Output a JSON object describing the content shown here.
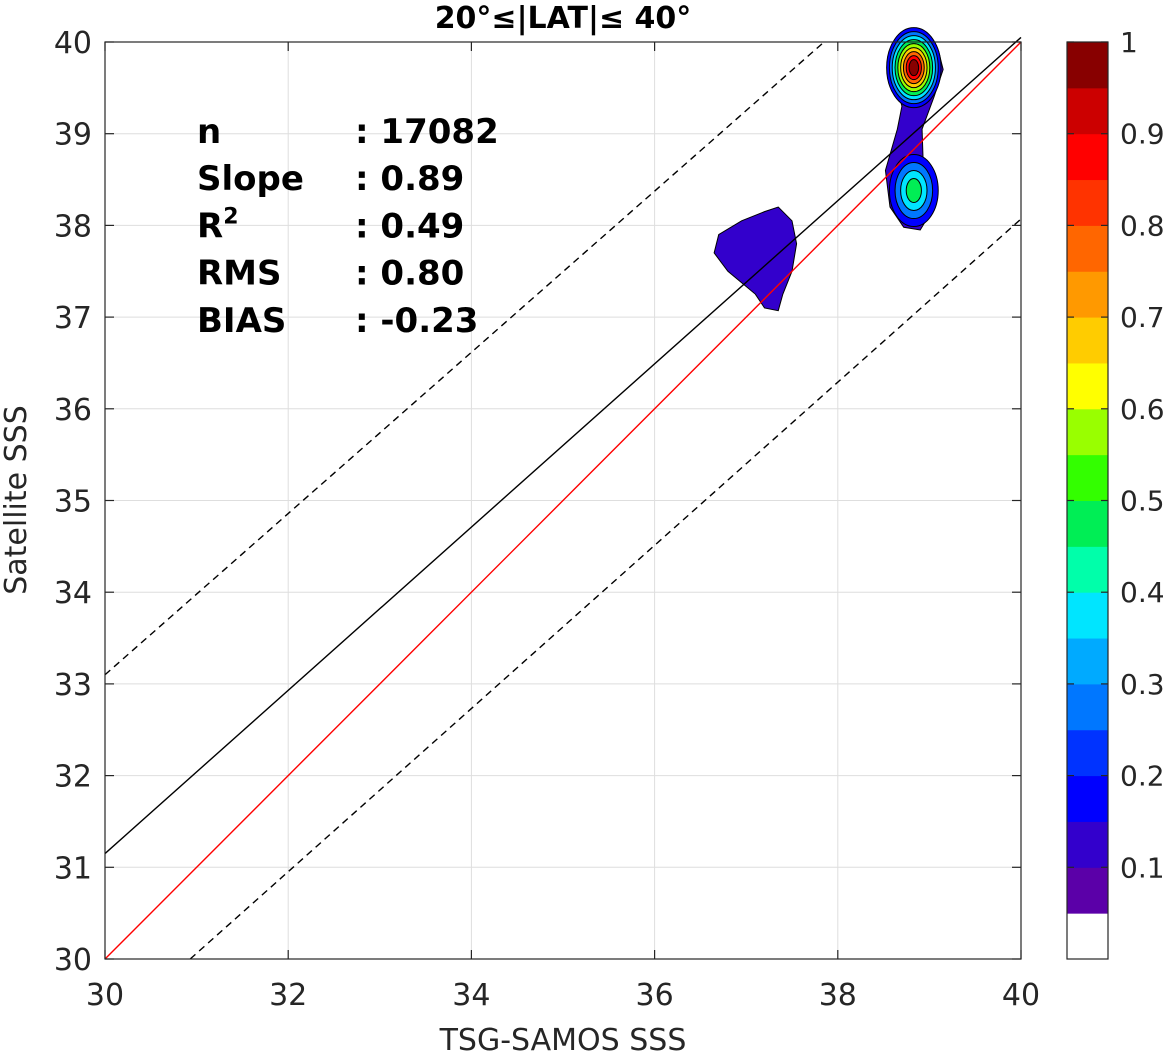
{
  "chart_data": {
    "type": "contour",
    "title": "20°≤|LAT|≤ 40°",
    "xlabel": "TSG-SAMOS SSS",
    "ylabel": "Satellite SSS",
    "xlim": [
      30,
      40
    ],
    "ylim": [
      30,
      40
    ],
    "xticks": [
      "30",
      "32",
      "34",
      "36",
      "38",
      "40"
    ],
    "yticks": [
      "30",
      "31",
      "32",
      "33",
      "34",
      "35",
      "36",
      "37",
      "38",
      "39",
      "40"
    ],
    "grid": true,
    "stats": [
      {
        "label": "n",
        "value": ": 17082"
      },
      {
        "label": "Slope",
        "value": ": 0.89"
      },
      {
        "label": "R",
        "sup": "2",
        "value": ": 0.49"
      },
      {
        "label": "RMS",
        "value": ": 0.80"
      },
      {
        "label": "BIAS",
        "value": ": -0.23"
      }
    ],
    "lines": [
      {
        "role": "one-to-one",
        "color": "#ff0000",
        "style": "solid",
        "points": [
          [
            30,
            30
          ],
          [
            40,
            40
          ]
        ]
      },
      {
        "role": "regression",
        "color": "#000000",
        "style": "solid",
        "points": [
          [
            30,
            31.15
          ],
          [
            40,
            40.05
          ]
        ]
      },
      {
        "role": "upper-bound",
        "color": "#000000",
        "style": "dashed",
        "points": [
          [
            30,
            33.1
          ],
          [
            37.85,
            40
          ]
        ]
      },
      {
        "role": "lower-bound",
        "color": "#000000",
        "style": "dashed",
        "points": [
          [
            30.93,
            30
          ],
          [
            40,
            38.07
          ]
        ]
      }
    ],
    "density_regions": [
      {
        "level": 0.1,
        "color": "#3300cc",
        "outline": [
          [
            36.65,
            37.7
          ],
          [
            36.7,
            37.9
          ],
          [
            36.95,
            38.05
          ],
          [
            37.2,
            38.15
          ],
          [
            37.35,
            38.2
          ],
          [
            37.5,
            38.05
          ],
          [
            37.55,
            37.8
          ],
          [
            37.5,
            37.5
          ],
          [
            37.4,
            37.25
          ],
          [
            37.35,
            37.07
          ],
          [
            37.2,
            37.1
          ],
          [
            37.1,
            37.25
          ],
          [
            36.8,
            37.5
          ]
        ]
      },
      {
        "level": 0.1,
        "color": "#3300cc",
        "outline": [
          [
            38.62,
            39.6
          ],
          [
            38.7,
            39.9
          ],
          [
            39.1,
            39.9
          ],
          [
            39.15,
            39.7
          ],
          [
            39.05,
            39.4
          ],
          [
            38.92,
            39.05
          ],
          [
            38.93,
            38.75
          ],
          [
            39.0,
            38.5
          ],
          [
            39.02,
            38.15
          ],
          [
            38.9,
            37.95
          ],
          [
            38.72,
            37.98
          ],
          [
            38.57,
            38.2
          ],
          [
            38.52,
            38.6
          ],
          [
            38.65,
            39.05
          ],
          [
            38.7,
            39.3
          ]
        ]
      }
    ],
    "density_peaks": [
      {
        "x": 38.83,
        "y": 39.72,
        "max": 1.0
      },
      {
        "x": 38.83,
        "y": 38.38,
        "max": 0.5
      }
    ],
    "colorbar": {
      "ticks": [
        "0.1",
        "0.2",
        "0.3",
        "0.4",
        "0.5",
        "0.6",
        "0.7",
        "0.8",
        "0.9",
        "1"
      ],
      "colors": [
        "#ffffff",
        "#5b00a8",
        "#3300cc",
        "#0000ff",
        "#0033ff",
        "#0077ff",
        "#00aaff",
        "#00e5ff",
        "#00ffaa",
        "#00ee55",
        "#33ff00",
        "#99ff00",
        "#ffff00",
        "#ffcc00",
        "#ff9900",
        "#ff6600",
        "#ff3300",
        "#ff0000",
        "#cc0000",
        "#880000"
      ]
    }
  }
}
